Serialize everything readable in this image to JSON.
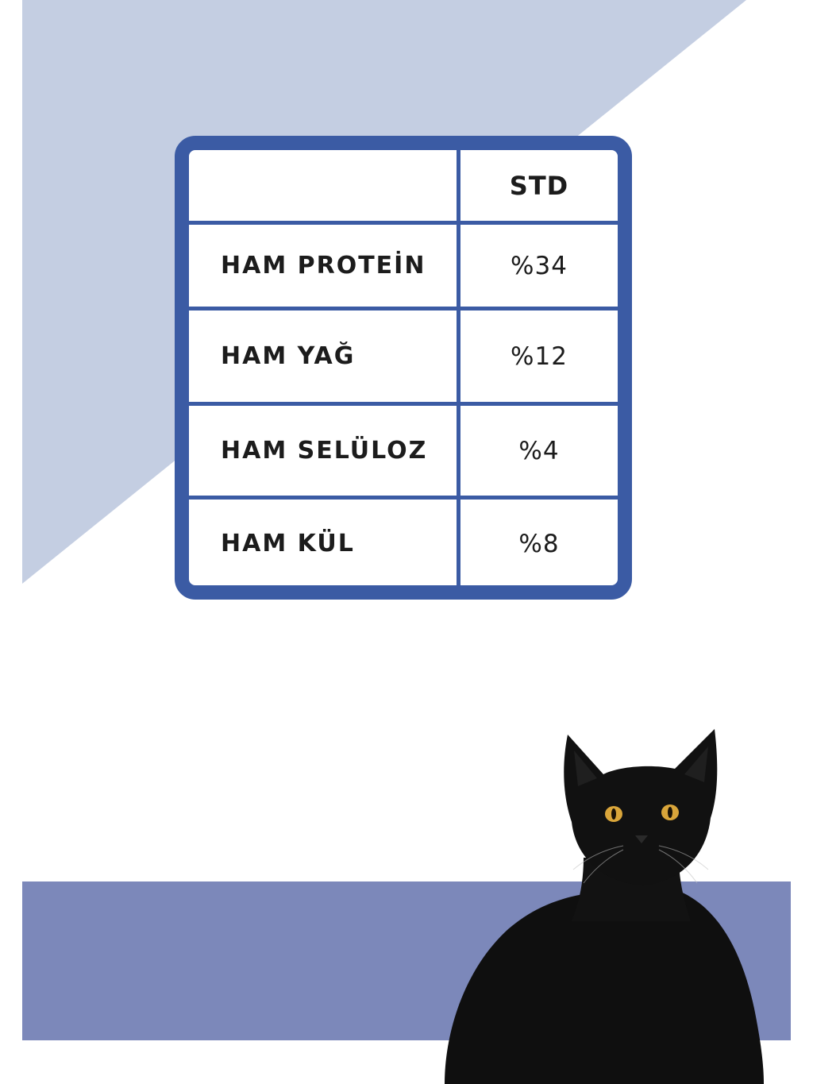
{
  "colors": {
    "light_band": "#c4cee2",
    "dark_band": "#7c88ba",
    "table_border": "#3b5ba4",
    "cell_bg": "#ffffff",
    "text": "#1c1c1c",
    "cat_body": "#0f0f0f",
    "cat_eyes": "#d9a53a"
  },
  "table": {
    "header": {
      "empty": "",
      "std": "STD"
    },
    "rows": [
      {
        "label": "HAM PROTEİN",
        "value": "%34"
      },
      {
        "label": "HAM YAĞ",
        "value": "%12"
      },
      {
        "label": "HAM SELÜLOZ",
        "value": "%4"
      },
      {
        "label": "HAM KÜL",
        "value": "%8"
      }
    ]
  },
  "illustration": {
    "subject": "black-cat"
  }
}
